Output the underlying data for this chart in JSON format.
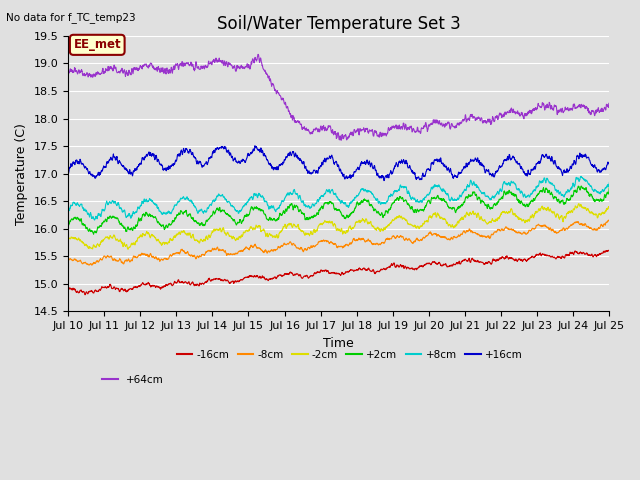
{
  "title": "Soil/Water Temperature Set 3",
  "xlabel": "Time",
  "ylabel": "Temperature (C)",
  "no_data_text": "No data for f_TC_temp23",
  "annotation_text": "EE_met",
  "ylim": [
    14.5,
    19.5
  ],
  "num_days": 15,
  "num_points": 2160,
  "series": {
    "-16cm": {
      "color": "#cc0000"
    },
    "-8cm": {
      "color": "#ff8800"
    },
    "-2cm": {
      "color": "#dddd00"
    },
    "+2cm": {
      "color": "#00cc00"
    },
    "+8cm": {
      "color": "#00cccc"
    },
    "+16cm": {
      "color": "#0000cc"
    },
    "+64cm": {
      "color": "#9933cc"
    }
  },
  "xtick_labels": [
    "Jul 10",
    "Jul 11",
    "Jul 12",
    "Jul 13",
    "Jul 14",
    "Jul 15",
    "Jul 16",
    "Jul 17",
    "Jul 18",
    "Jul 19",
    "Jul 20",
    "Jul 21",
    "Jul 22",
    "Jul 23",
    "Jul 24",
    "Jul 25"
  ],
  "bg_color": "#e0e0e0",
  "plot_bg_color": "#e0e0e0",
  "grid_color": "#ffffff",
  "title_fontsize": 12,
  "label_fontsize": 9,
  "tick_fontsize": 8
}
